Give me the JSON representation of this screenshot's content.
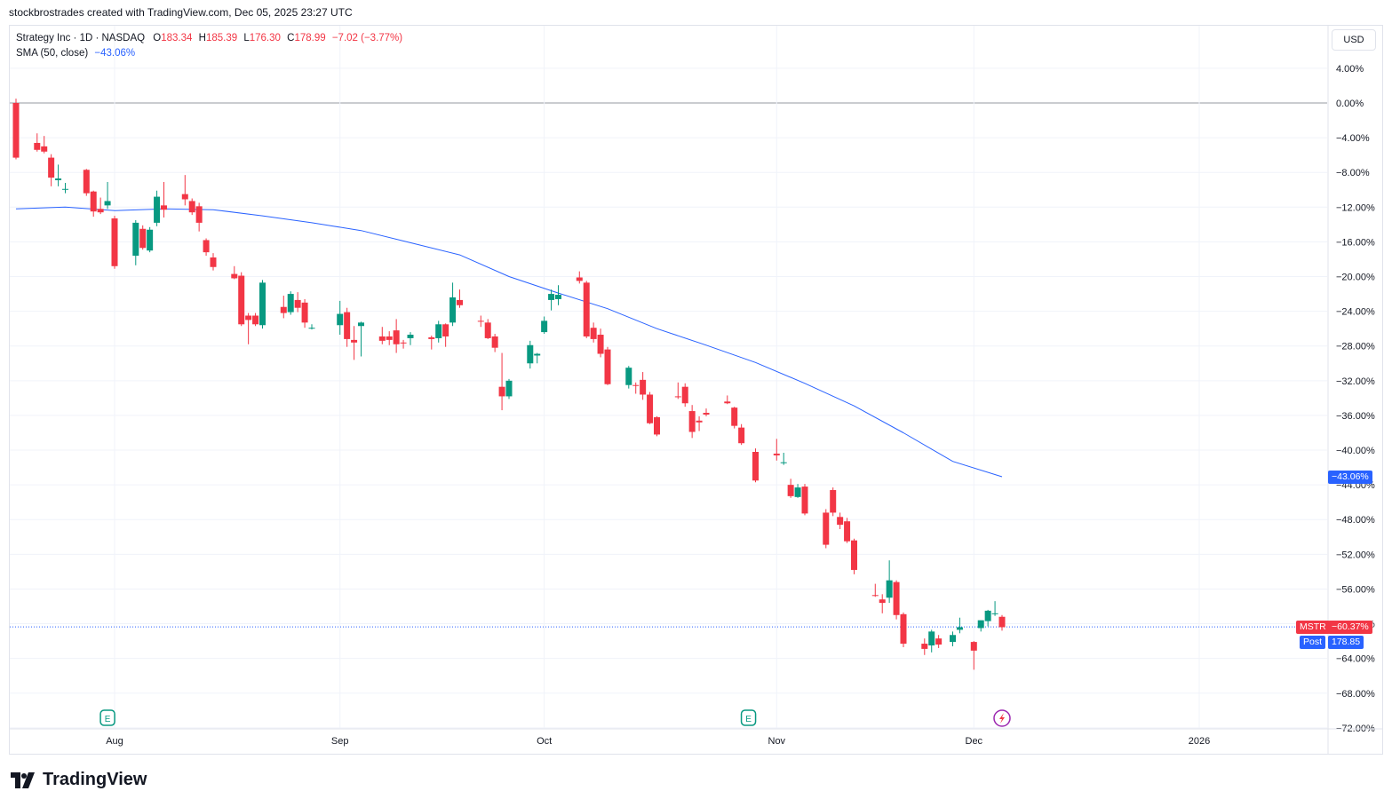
{
  "attribution": "stockbrostrades created with TradingView.com, Dec 05, 2025 23:27 UTC",
  "legend": {
    "symbol": "Strategy Inc · 1D · NASDAQ",
    "open_label": "O",
    "open": "183.34",
    "high_label": "H",
    "high": "185.39",
    "low_label": "L",
    "low": "176.30",
    "close_label": "C",
    "close": "178.99",
    "change": "−7.02 (−3.77%)",
    "sma_label": "SMA (50, close)",
    "sma_value": "−43.06%"
  },
  "currency_button": "USD",
  "price_tags": {
    "sma": "−43.06%",
    "ticker": "MSTR",
    "change_pct": "−60.37%",
    "post_label": "Post",
    "post_price": "178.85"
  },
  "logo_text": "TradingView",
  "colors": {
    "up": "#089981",
    "down": "#f23645",
    "sma": "#2962ff",
    "grid": "#f0f3fa",
    "zero_line": "#9598a1"
  },
  "chart_data": {
    "type": "candlestick",
    "y_axis": {
      "unit": "% change",
      "range": [
        -72,
        6
      ],
      "ticks": [
        4,
        0,
        -4,
        -8,
        -12,
        -16,
        -20,
        -24,
        -28,
        -32,
        -36,
        -40,
        -44,
        -48,
        -52,
        -56,
        -60,
        -64,
        -68,
        -72
      ],
      "tick_labels": [
        "4.00%",
        "0.00%",
        "−4.00%",
        "−8.00%",
        "−12.00%",
        "−16.00%",
        "−20.00%",
        "−24.00%",
        "−28.00%",
        "−32.00%",
        "−36.00%",
        "−40.00%",
        "−44.00%",
        "−48.00%",
        "−52.00%",
        "−56.00%",
        "−60.00%",
        "−64.00%",
        "−68.00%",
        "−72.00%"
      ]
    },
    "x_axis": {
      "labels": [
        {
          "label": "Aug",
          "date": "2025-08-01"
        },
        {
          "label": "Sep",
          "date": "2025-09-02"
        },
        {
          "label": "Oct",
          "date": "2025-10-01"
        },
        {
          "label": "Nov",
          "date": "2025-11-03"
        },
        {
          "label": "Dec",
          "date": "2025-12-01"
        },
        {
          "label": "2026",
          "date": "2026-01-02"
        }
      ]
    },
    "candles": [
      {
        "date": "2025-07-18",
        "o": 0.0,
        "h": 0.5,
        "l": -6.5,
        "c": -6.3
      },
      {
        "date": "2025-07-21",
        "o": -4.6,
        "h": -3.5,
        "l": -5.6,
        "c": -5.4
      },
      {
        "date": "2025-07-22",
        "o": -5.0,
        "h": -3.8,
        "l": -5.8,
        "c": -5.6
      },
      {
        "date": "2025-07-23",
        "o": -6.3,
        "h": -5.9,
        "l": -9.6,
        "c": -8.6
      },
      {
        "date": "2025-07-24",
        "o": -8.9,
        "h": -7.1,
        "l": -9.6,
        "c": -8.7
      },
      {
        "date": "2025-07-25",
        "o": -9.9,
        "h": -9.2,
        "l": -10.4,
        "c": -9.9
      },
      {
        "date": "2025-07-28",
        "o": -7.7,
        "h": -7.6,
        "l": -10.7,
        "c": -10.4
      },
      {
        "date": "2025-07-29",
        "o": -10.2,
        "h": -10.1,
        "l": -13.1,
        "c": -12.5
      },
      {
        "date": "2025-07-30",
        "o": -12.2,
        "h": -10.9,
        "l": -12.8,
        "c": -12.6
      },
      {
        "date": "2025-07-31",
        "o": -11.8,
        "h": -9.1,
        "l": -12.2,
        "c": -11.3
      },
      {
        "date": "2025-08-01",
        "o": -13.3,
        "h": -13.0,
        "l": -19.1,
        "c": -18.8
      },
      {
        "date": "2025-08-04",
        "o": -17.6,
        "h": -13.5,
        "l": -18.7,
        "c": -13.8
      },
      {
        "date": "2025-08-05",
        "o": -14.5,
        "h": -14.1,
        "l": -16.9,
        "c": -16.7
      },
      {
        "date": "2025-08-06",
        "o": -17.0,
        "h": -14.3,
        "l": -17.2,
        "c": -14.6
      },
      {
        "date": "2025-08-07",
        "o": -13.8,
        "h": -10.1,
        "l": -14.2,
        "c": -10.8
      },
      {
        "date": "2025-08-08",
        "o": -11.8,
        "h": -9.1,
        "l": -13.2,
        "c": -12.3
      },
      {
        "date": "2025-08-11",
        "o": -10.5,
        "h": -8.3,
        "l": -11.8,
        "c": -11.1
      },
      {
        "date": "2025-08-12",
        "o": -11.3,
        "h": -11.0,
        "l": -12.9,
        "c": -12.6
      },
      {
        "date": "2025-08-13",
        "o": -11.9,
        "h": -11.5,
        "l": -14.8,
        "c": -13.8
      },
      {
        "date": "2025-08-14",
        "o": -15.8,
        "h": -15.6,
        "l": -17.6,
        "c": -17.2
      },
      {
        "date": "2025-08-15",
        "o": -17.8,
        "h": -17.3,
        "l": -19.3,
        "c": -18.9
      },
      {
        "date": "2025-08-18",
        "o": -19.7,
        "h": -18.8,
        "l": -20.3,
        "c": -20.2
      },
      {
        "date": "2025-08-19",
        "o": -19.9,
        "h": -19.5,
        "l": -25.7,
        "c": -25.5
      },
      {
        "date": "2025-08-20",
        "o": -24.5,
        "h": -24.2,
        "l": -27.8,
        "c": -25.0
      },
      {
        "date": "2025-08-21",
        "o": -24.5,
        "h": -24.2,
        "l": -25.7,
        "c": -25.5
      },
      {
        "date": "2025-08-22",
        "o": -25.6,
        "h": -20.4,
        "l": -26.0,
        "c": -20.7
      },
      {
        "date": "2025-08-25",
        "o": -23.5,
        "h": -22.2,
        "l": -24.8,
        "c": -24.2
      },
      {
        "date": "2025-08-26",
        "o": -24.1,
        "h": -21.7,
        "l": -24.4,
        "c": -22.0
      },
      {
        "date": "2025-08-27",
        "o": -22.7,
        "h": -21.8,
        "l": -24.1,
        "c": -23.6
      },
      {
        "date": "2025-08-28",
        "o": -23.0,
        "h": -22.6,
        "l": -25.9,
        "c": -25.3
      },
      {
        "date": "2025-08-29",
        "o": -25.9,
        "h": -25.5,
        "l": -26.1,
        "c": -25.9
      },
      {
        "date": "2025-09-02",
        "o": -25.6,
        "h": -22.8,
        "l": -26.7,
        "c": -24.3
      },
      {
        "date": "2025-09-03",
        "o": -24.1,
        "h": -23.6,
        "l": -28.1,
        "c": -27.2
      },
      {
        "date": "2025-09-04",
        "o": -27.3,
        "h": -25.7,
        "l": -29.6,
        "c": -27.6
      },
      {
        "date": "2025-09-05",
        "o": -25.7,
        "h": -25.2,
        "l": -29.2,
        "c": -25.3
      },
      {
        "date": "2025-09-08",
        "o": -26.9,
        "h": -25.8,
        "l": -27.8,
        "c": -27.4
      },
      {
        "date": "2025-09-09",
        "o": -26.9,
        "h": -26.3,
        "l": -27.9,
        "c": -27.3
      },
      {
        "date": "2025-09-10",
        "o": -26.2,
        "h": -24.9,
        "l": -28.8,
        "c": -27.8
      },
      {
        "date": "2025-09-11",
        "o": -27.6,
        "h": -27.3,
        "l": -28.3,
        "c": -27.7
      },
      {
        "date": "2025-09-12",
        "o": -27.1,
        "h": -26.4,
        "l": -27.9,
        "c": -26.7
      },
      {
        "date": "2025-09-15",
        "o": -27.0,
        "h": -26.8,
        "l": -28.4,
        "c": -27.2
      },
      {
        "date": "2025-09-16",
        "o": -27.1,
        "h": -25.1,
        "l": -27.6,
        "c": -25.5
      },
      {
        "date": "2025-09-17",
        "o": -25.5,
        "h": -25.4,
        "l": -28.1,
        "c": -26.9
      },
      {
        "date": "2025-09-18",
        "o": -25.3,
        "h": -20.7,
        "l": -25.7,
        "c": -22.4
      },
      {
        "date": "2025-09-19",
        "o": -22.7,
        "h": -21.5,
        "l": -23.6,
        "c": -23.3
      },
      {
        "date": "2025-09-22",
        "o": -25.1,
        "h": -24.5,
        "l": -25.8,
        "c": -25.2
      },
      {
        "date": "2025-09-23",
        "o": -25.3,
        "h": -24.9,
        "l": -27.2,
        "c": -27.1
      },
      {
        "date": "2025-09-24",
        "o": -26.9,
        "h": -26.6,
        "l": -28.7,
        "c": -28.2
      },
      {
        "date": "2025-09-25",
        "o": -32.7,
        "h": -28.8,
        "l": -35.4,
        "c": -33.8
      },
      {
        "date": "2025-09-26",
        "o": -33.8,
        "h": -31.8,
        "l": -34.1,
        "c": -32.0
      },
      {
        "date": "2025-09-29",
        "o": -30.0,
        "h": -27.4,
        "l": -30.6,
        "c": -27.9
      },
      {
        "date": "2025-09-30",
        "o": -29.1,
        "h": -28.8,
        "l": -30.0,
        "c": -28.9
      },
      {
        "date": "2025-10-01",
        "o": -26.4,
        "h": -24.6,
        "l": -26.6,
        "c": -25.1
      },
      {
        "date": "2025-10-02",
        "o": -22.7,
        "h": -21.5,
        "l": -23.9,
        "c": -22.0
      },
      {
        "date": "2025-10-03",
        "o": -22.6,
        "h": -21.0,
        "l": -23.3,
        "c": -22.1
      },
      {
        "date": "2025-10-06",
        "o": -20.1,
        "h": -19.4,
        "l": -20.8,
        "c": -20.5
      },
      {
        "date": "2025-10-07",
        "o": -20.7,
        "h": -20.5,
        "l": -27.1,
        "c": -26.9
      },
      {
        "date": "2025-10-08",
        "o": -25.9,
        "h": -25.3,
        "l": -27.6,
        "c": -27.2
      },
      {
        "date": "2025-10-09",
        "o": -26.7,
        "h": -26.0,
        "l": -29.3,
        "c": -28.9
      },
      {
        "date": "2025-10-10",
        "o": -28.4,
        "h": -28.1,
        "l": -32.5,
        "c": -32.4
      },
      {
        "date": "2025-10-13",
        "o": -32.5,
        "h": -30.3,
        "l": -32.9,
        "c": -30.5
      },
      {
        "date": "2025-10-14",
        "o": -32.5,
        "h": -32.2,
        "l": -33.5,
        "c": -32.6
      },
      {
        "date": "2025-10-15",
        "o": -31.9,
        "h": -31.0,
        "l": -34.2,
        "c": -33.6
      },
      {
        "date": "2025-10-16",
        "o": -33.6,
        "h": -33.3,
        "l": -37.0,
        "c": -36.9
      },
      {
        "date": "2025-10-17",
        "o": -36.2,
        "h": -36.1,
        "l": -38.4,
        "c": -38.2
      },
      {
        "date": "2025-10-20",
        "o": -33.8,
        "h": -32.2,
        "l": -34.1,
        "c": -33.9
      },
      {
        "date": "2025-10-21",
        "o": -32.7,
        "h": -32.3,
        "l": -35.0,
        "c": -34.6
      },
      {
        "date": "2025-10-22",
        "o": -35.5,
        "h": -34.8,
        "l": -38.6,
        "c": -37.9
      },
      {
        "date": "2025-10-23",
        "o": -36.6,
        "h": -36.1,
        "l": -37.8,
        "c": -36.8
      },
      {
        "date": "2025-10-24",
        "o": -35.7,
        "h": -35.2,
        "l": -36.1,
        "c": -35.9
      },
      {
        "date": "2025-10-27",
        "o": -34.4,
        "h": -33.7,
        "l": -34.7,
        "c": -34.6
      },
      {
        "date": "2025-10-28",
        "o": -35.1,
        "h": -35.0,
        "l": -37.5,
        "c": -37.2
      },
      {
        "date": "2025-10-29",
        "o": -37.4,
        "h": -37.0,
        "l": -39.4,
        "c": -39.2
      },
      {
        "date": "2025-10-31",
        "o": -40.2,
        "h": -39.8,
        "l": -43.7,
        "c": -43.5
      },
      {
        "date": "2025-11-03",
        "o": -40.4,
        "h": -38.7,
        "l": -41.2,
        "c": -40.6
      },
      {
        "date": "2025-11-04",
        "o": -41.4,
        "h": -40.3,
        "l": -41.7,
        "c": -41.4
      },
      {
        "date": "2025-11-05",
        "o": -44.0,
        "h": -43.3,
        "l": -45.5,
        "c": -45.3
      },
      {
        "date": "2025-11-06",
        "o": -45.4,
        "h": -43.9,
        "l": -45.5,
        "c": -44.3
      },
      {
        "date": "2025-11-07",
        "o": -44.2,
        "h": -43.9,
        "l": -47.5,
        "c": -47.3
      },
      {
        "date": "2025-11-10",
        "o": -47.2,
        "h": -46.8,
        "l": -51.3,
        "c": -50.9
      },
      {
        "date": "2025-11-11",
        "o": -44.6,
        "h": -44.3,
        "l": -47.6,
        "c": -47.2
      },
      {
        "date": "2025-11-12",
        "o": -47.7,
        "h": -47.2,
        "l": -49.1,
        "c": -48.6
      },
      {
        "date": "2025-11-13",
        "o": -48.2,
        "h": -47.8,
        "l": -50.7,
        "c": -50.5
      },
      {
        "date": "2025-11-14",
        "o": -50.4,
        "h": -50.2,
        "l": -54.3,
        "c": -53.8
      },
      {
        "date": "2025-11-17",
        "o": -56.7,
        "h": -55.4,
        "l": -56.9,
        "c": -56.8
      },
      {
        "date": "2025-11-18",
        "o": -57.2,
        "h": -56.6,
        "l": -58.8,
        "c": -57.6
      },
      {
        "date": "2025-11-19",
        "o": -57.0,
        "h": -52.7,
        "l": -57.6,
        "c": -55.0
      },
      {
        "date": "2025-11-20",
        "o": -55.2,
        "h": -55.0,
        "l": -59.5,
        "c": -59.0
      },
      {
        "date": "2025-11-21",
        "o": -58.9,
        "h": -58.7,
        "l": -62.7,
        "c": -62.3
      },
      {
        "date": "2025-11-24",
        "o": -62.3,
        "h": -61.7,
        "l": -63.6,
        "c": -62.9
      },
      {
        "date": "2025-11-25",
        "o": -62.5,
        "h": -60.7,
        "l": -63.3,
        "c": -60.9
      },
      {
        "date": "2025-11-26",
        "o": -61.7,
        "h": -61.3,
        "l": -62.8,
        "c": -62.4
      },
      {
        "date": "2025-11-28",
        "o": -62.1,
        "h": -60.9,
        "l": -62.6,
        "c": -61.3
      },
      {
        "date": "2025-11-29",
        "o": -60.7,
        "h": -59.3,
        "l": -61.1,
        "c": -60.4
      },
      {
        "date": "2025-12-01",
        "o": -62.1,
        "h": -62.0,
        "l": -65.3,
        "c": -63.1
      },
      {
        "date": "2025-12-02",
        "o": -60.5,
        "h": -59.9,
        "l": -60.9,
        "c": -59.6
      },
      {
        "date": "2025-12-03",
        "o": -59.7,
        "h": -58.4,
        "l": -60.3,
        "c": -58.5
      },
      {
        "date": "2025-12-04",
        "o": -58.8,
        "h": -57.4,
        "l": -59.1,
        "c": -58.8
      },
      {
        "date": "2025-12-05",
        "o": -59.2,
        "h": -59.0,
        "l": -60.8,
        "c": -60.4
      }
    ],
    "series": [
      {
        "name": "SMA (50, close)",
        "points": [
          {
            "date": "2025-07-18",
            "y": -12.2
          },
          {
            "date": "2025-07-25",
            "y": -12.0
          },
          {
            "date": "2025-08-01",
            "y": -12.4
          },
          {
            "date": "2025-08-08",
            "y": -12.2
          },
          {
            "date": "2025-08-15",
            "y": -12.3
          },
          {
            "date": "2025-08-22",
            "y": -13.0
          },
          {
            "date": "2025-08-29",
            "y": -13.8
          },
          {
            "date": "2025-09-05",
            "y": -14.7
          },
          {
            "date": "2025-09-12",
            "y": -16.1
          },
          {
            "date": "2025-09-19",
            "y": -17.5
          },
          {
            "date": "2025-09-26",
            "y": -20.0
          },
          {
            "date": "2025-10-03",
            "y": -21.9
          },
          {
            "date": "2025-10-10",
            "y": -23.7
          },
          {
            "date": "2025-10-17",
            "y": -26.0
          },
          {
            "date": "2025-10-24",
            "y": -27.9
          },
          {
            "date": "2025-10-31",
            "y": -29.9
          },
          {
            "date": "2025-11-07",
            "y": -32.3
          },
          {
            "date": "2025-11-14",
            "y": -34.9
          },
          {
            "date": "2025-11-21",
            "y": -38.0
          },
          {
            "date": "2025-11-28",
            "y": -41.3
          },
          {
            "date": "2025-12-05",
            "y": -43.06
          }
        ]
      }
    ],
    "last_value_line": -60.37,
    "earnings_markers": [
      "2025-07-31",
      "2025-10-30"
    ],
    "event_marker": "2025-12-05"
  }
}
